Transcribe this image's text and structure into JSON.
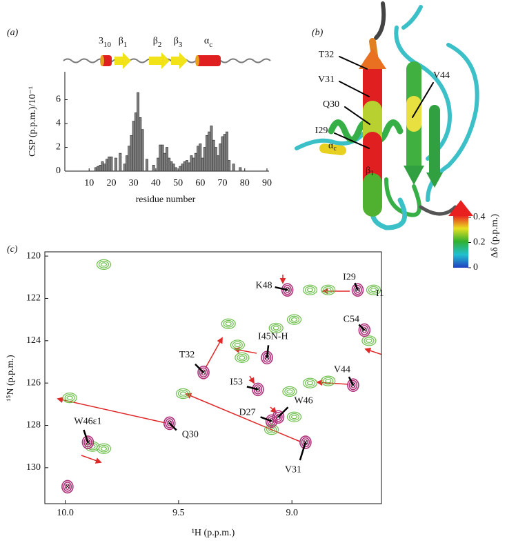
{
  "panel_labels": [
    "(a)",
    "(b)",
    "(c)"
  ],
  "chart_data": [
    {
      "type": "bar",
      "x": [
        13,
        14,
        15,
        16,
        17,
        18,
        19,
        20,
        22,
        24,
        26,
        27,
        28,
        29,
        30,
        31,
        32,
        33,
        34,
        36,
        39,
        41,
        42,
        43,
        44,
        45,
        46,
        47,
        48,
        49,
        51,
        52,
        53,
        54,
        55,
        56,
        57,
        58,
        59,
        60,
        61,
        62,
        63,
        64,
        65,
        66,
        67,
        68,
        69,
        70,
        71,
        72,
        73,
        75,
        78
      ],
      "values": [
        0.3,
        0.4,
        0.5,
        0.8,
        0.6,
        1.0,
        1.2,
        1.2,
        1.1,
        1.5,
        0.6,
        1.3,
        2.1,
        3.0,
        4.2,
        4.9,
        6.6,
        4.5,
        3.5,
        1.0,
        0.5,
        1.1,
        2.2,
        2.2,
        1.5,
        2.0,
        1.1,
        0.8,
        0.6,
        0.3,
        0.4,
        0.6,
        0.8,
        0.9,
        0.7,
        1.3,
        1.1,
        1.5,
        2.1,
        2.3,
        1.1,
        2.0,
        3.0,
        3.3,
        3.8,
        2.6,
        2.0,
        1.3,
        2.3,
        2.9,
        3.1,
        3.3,
        0.9,
        0.6,
        0.3
      ],
      "color": "#7f7f7f",
      "xlim": [
        0,
        90
      ],
      "ylim": [
        0,
        8
      ],
      "xticks": [
        10,
        20,
        30,
        40,
        50,
        60,
        70,
        80,
        90
      ],
      "yticks": [
        0,
        2,
        4,
        6
      ],
      "xlabel": "residue number",
      "ylabel": "CSP (p.p.m.)/10⁻¹",
      "secondary_structure": [
        {
          "label": "3",
          "sub": "10"
        },
        {
          "label": "β",
          "sub": "1"
        },
        {
          "label": "β",
          "sub": "2"
        },
        {
          "label": "β",
          "sub": "3"
        },
        {
          "label": "α",
          "sub": "c"
        }
      ]
    },
    {
      "type": "scatter",
      "series": [
        {
          "color": "#b0307a",
          "x": [
            9.02,
            8.71,
            8.68,
            9.11,
            9.39,
            9.15,
            8.73,
            9.09,
            9.06,
            9.54,
            8.94,
            9.9,
            9.99
          ],
          "values": [
            121.6,
            121.6,
            123.5,
            124.8,
            125.5,
            126.3,
            126.1,
            127.8,
            127.6,
            127.9,
            128.8,
            128.8,
            130.9
          ],
          "labels": [
            "K48",
            "I29",
            "C54",
            "I45N-H",
            "T32",
            "I53",
            "V44",
            "D27",
            "W46",
            "Q30",
            "V31",
            "W46ε1",
            null
          ]
        },
        {
          "color": "#6cbf4a",
          "x": [
            9.98,
            9.83,
            9.83,
            9.48,
            9.28,
            9.24,
            9.22,
            9.07,
            8.99,
            8.92,
            8.84,
            8.64,
            9.01,
            8.92,
            8.84,
            8.66,
            8.99,
            9.09,
            9.88
          ],
          "values": [
            126.7,
            129.1,
            120.4,
            126.5,
            123.2,
            124.2,
            124.8,
            123.4,
            123.0,
            121.6,
            121.6,
            121.6,
            126.4,
            126.0,
            125.9,
            124.0,
            127.6,
            128.2,
            129.0
          ]
        }
      ],
      "xlim": [
        10.09,
        8.605
      ],
      "ylim": [
        119.8,
        131.7
      ],
      "xticks": [
        {
          "value": 10,
          "label": "10.0"
        },
        9.5,
        {
          "value": 9,
          "label": "9.0"
        }
      ],
      "yticks": [
        120,
        122,
        124,
        126,
        128,
        130
      ],
      "xlabel": "¹H (p.p.m.)",
      "ylabel": "¹⁵N (p.p.m.)",
      "annotations": [
        "I1"
      ]
    }
  ],
  "structure": {
    "labels": [
      "T32",
      "V31",
      "Q30",
      "I29",
      "V44"
    ],
    "strand_label": {
      "label": "β",
      "sub": "1"
    },
    "helix_label": {
      "label": "α",
      "sub": "c"
    },
    "colorbar": {
      "lim": [
        0,
        0.4
      ],
      "ticks": [
        0,
        0.2,
        0.4
      ],
      "label": "Δδ (p.p.m.)"
    }
  }
}
